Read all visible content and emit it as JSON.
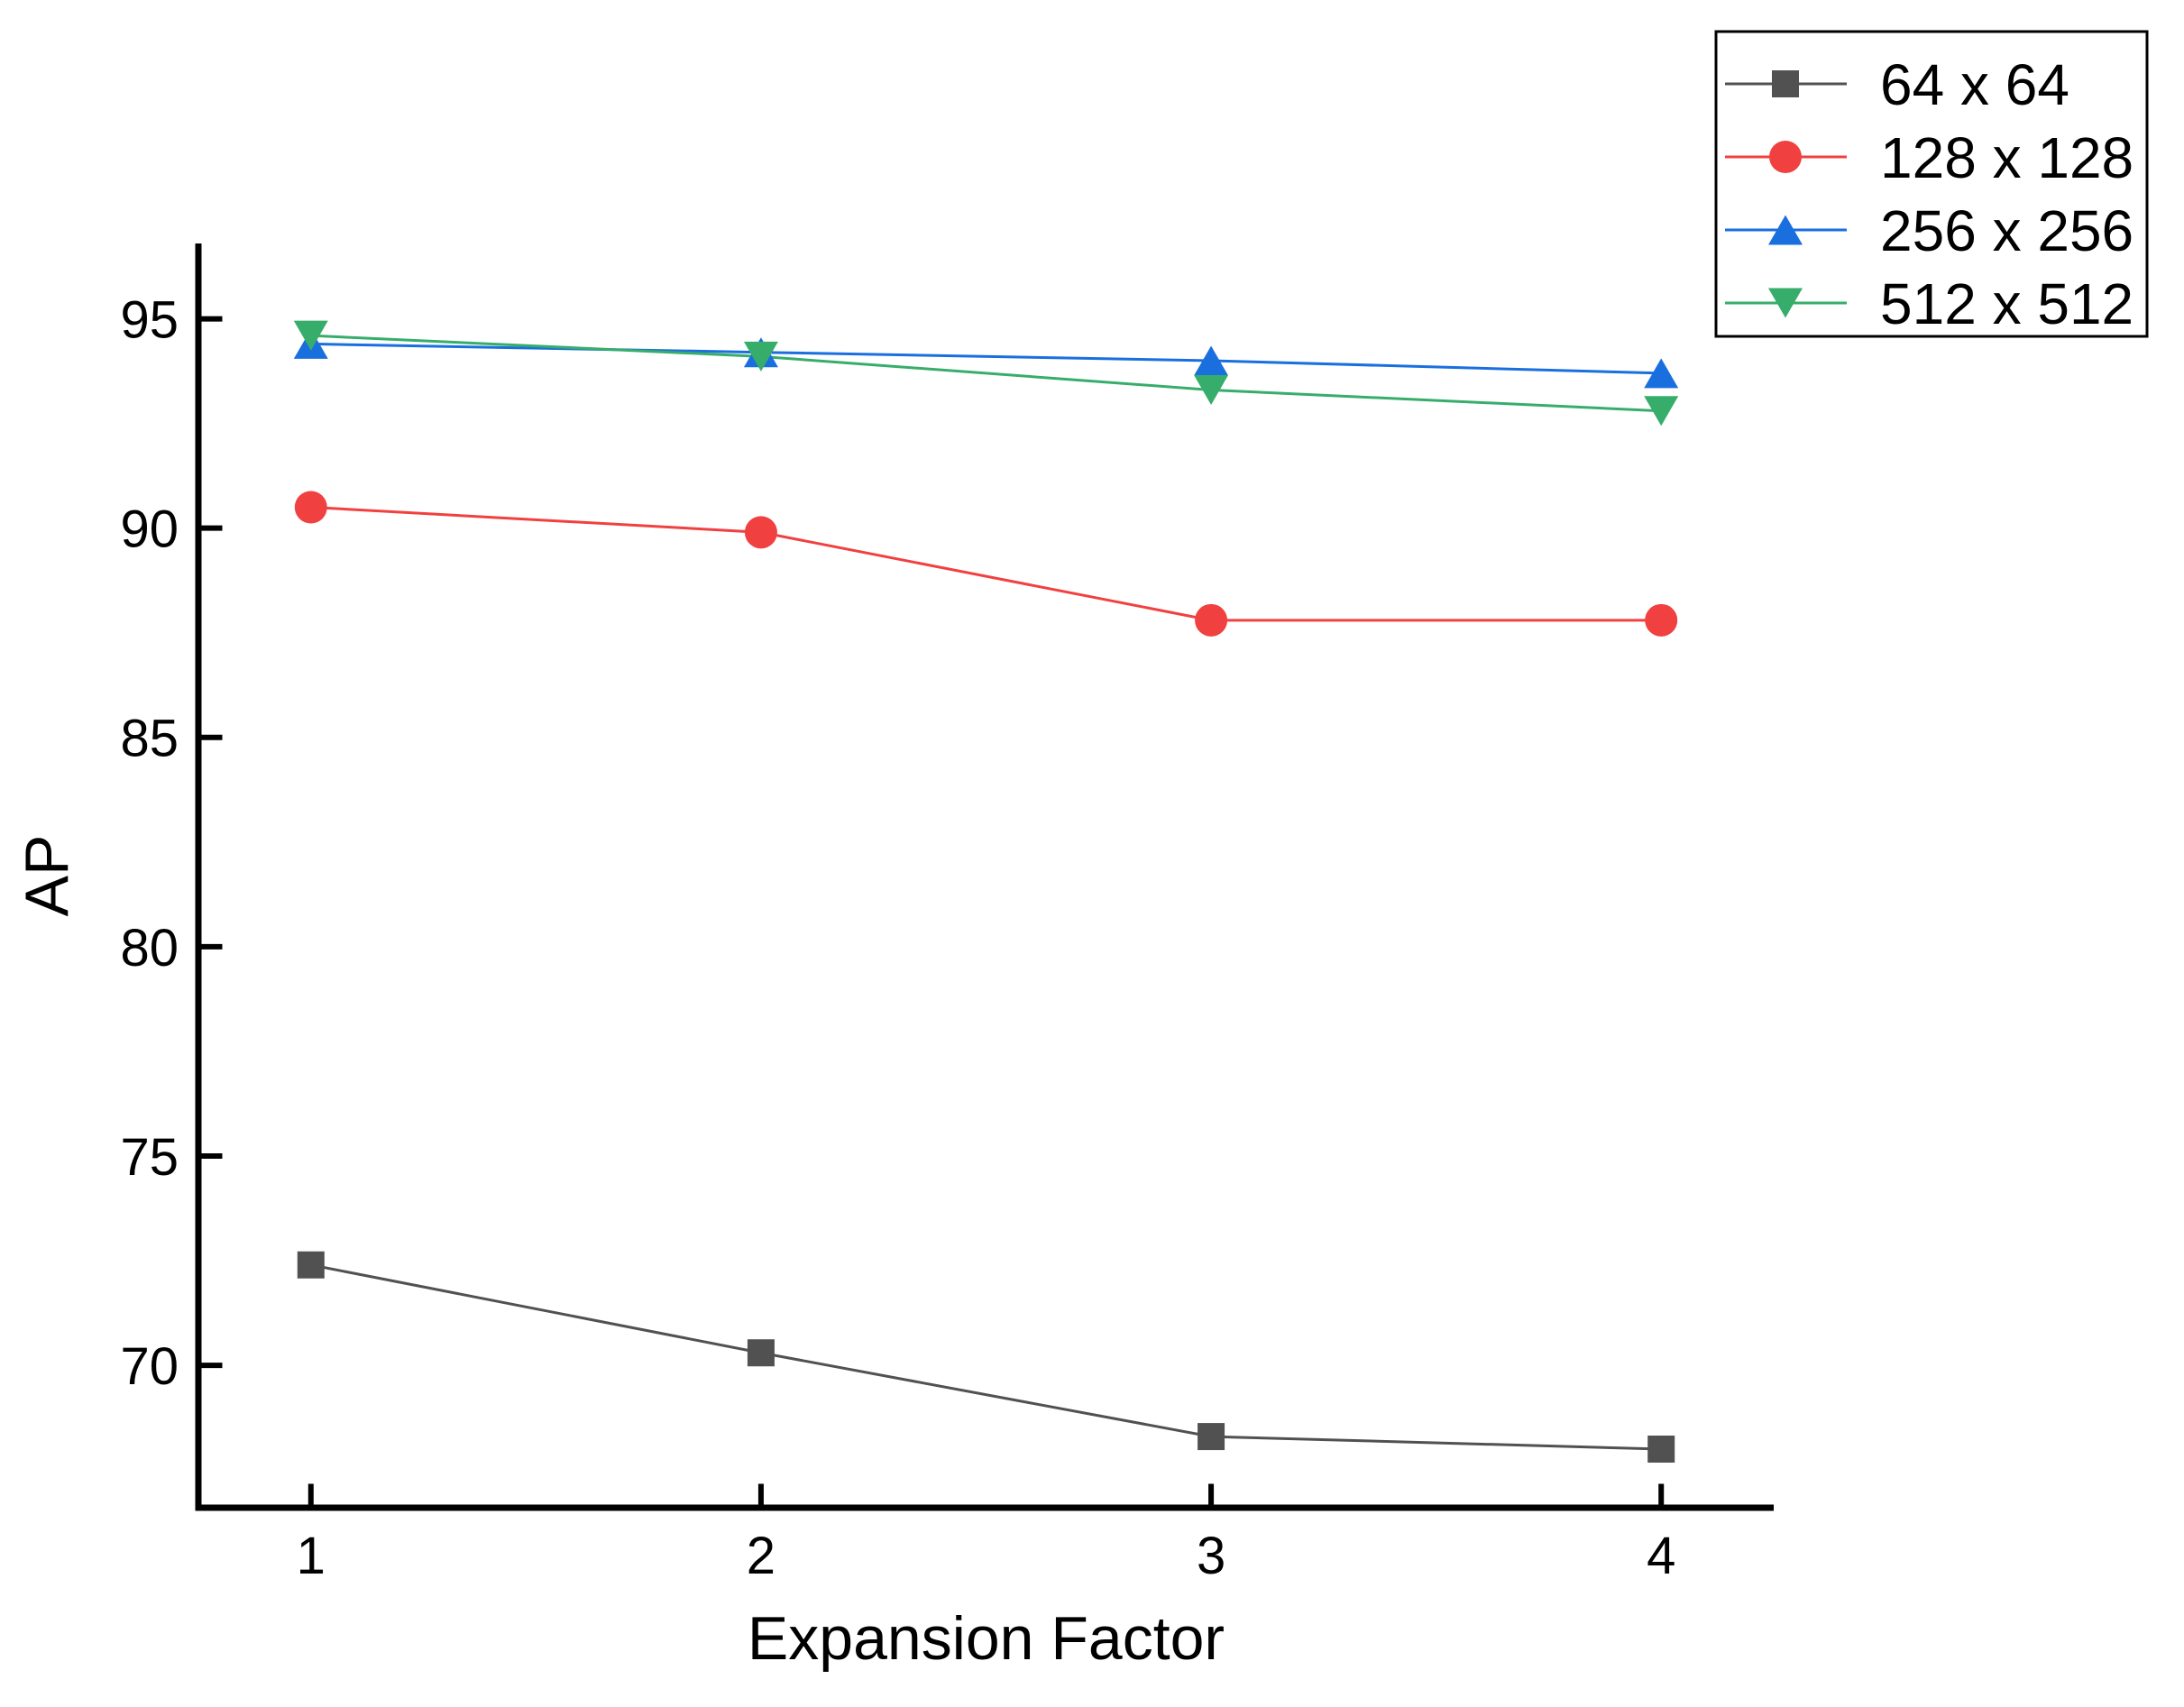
{
  "page": {
    "background": "#ffffff"
  },
  "chart_data": {
    "type": "line",
    "title": "",
    "xlabel": "Expansion Factor",
    "ylabel": "AP",
    "x": [
      1,
      2,
      3,
      4
    ],
    "x_ticks": [
      1,
      2,
      3,
      4
    ],
    "y_ticks": [
      70,
      75,
      80,
      85,
      90,
      95
    ],
    "xlim": [
      0.75,
      4.25
    ],
    "ylim": [
      66.6,
      96.8
    ],
    "grid": false,
    "legend_position": "top-right",
    "axis_color": "#000000",
    "background_color": "#ffffff",
    "series": [
      {
        "name": "64 x 64",
        "marker": "square",
        "color": "#515151",
        "values": [
          72.4,
          70.3,
          68.3,
          68.0
        ]
      },
      {
        "name": "128 x 128",
        "marker": "circle",
        "color": "#F14040",
        "values": [
          90.5,
          89.9,
          87.8,
          87.8
        ]
      },
      {
        "name": "256 x 256",
        "marker": "triangle-up",
        "color": "#1A6FDF",
        "values": [
          94.4,
          94.2,
          94.0,
          93.7
        ]
      },
      {
        "name": "512 x 512",
        "marker": "triangle-down",
        "color": "#37AD6B",
        "values": [
          94.6,
          94.1,
          93.3,
          92.8
        ]
      }
    ]
  }
}
